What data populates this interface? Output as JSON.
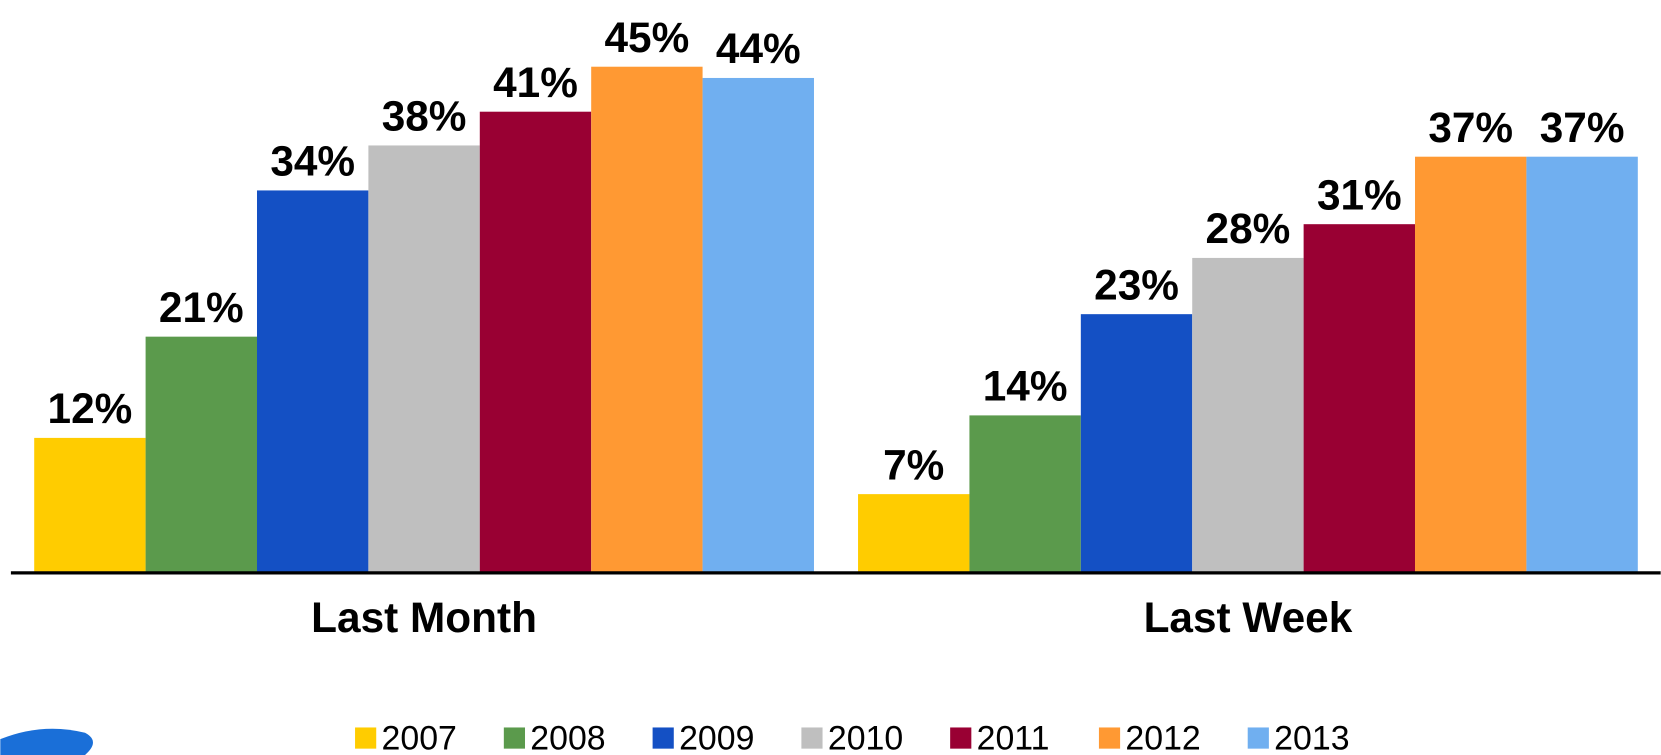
{
  "chart_data": {
    "type": "bar",
    "categories": [
      "Last Month",
      "Last Week"
    ],
    "series": [
      {
        "name": "2007",
        "color": "#ffcc00",
        "values": [
          12,
          7
        ],
        "value_labels": [
          "12%",
          "7%"
        ]
      },
      {
        "name": "2008",
        "color": "#5b9a4c",
        "values": [
          21,
          14
        ],
        "value_labels": [
          "21%",
          "14%"
        ]
      },
      {
        "name": "2009",
        "color": "#1450c4",
        "values": [
          34,
          23
        ],
        "value_labels": [
          "34%",
          "23%"
        ]
      },
      {
        "name": "2010",
        "color": "#bfbfbf",
        "values": [
          38,
          28
        ],
        "value_labels": [
          "38%",
          "28%"
        ]
      },
      {
        "name": "2011",
        "color": "#990033",
        "values": [
          41,
          31
        ],
        "value_labels": [
          "41%",
          "31%"
        ]
      },
      {
        "name": "2012",
        "color": "#ff9933",
        "values": [
          45,
          37
        ],
        "value_labels": [
          "45%",
          "37%"
        ]
      },
      {
        "name": "2013",
        "color": "#70aff0",
        "values": [
          44,
          37
        ],
        "value_labels": [
          "44%",
          "37%"
        ]
      }
    ],
    "legend": "bottom"
  }
}
